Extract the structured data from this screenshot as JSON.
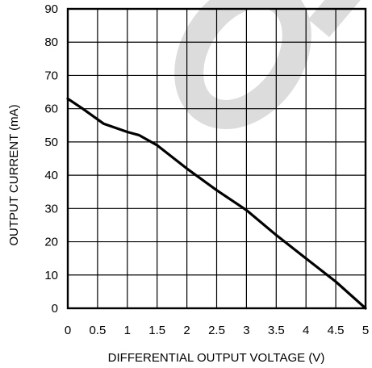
{
  "chart_data": {
    "type": "line",
    "title": "",
    "xlabel": "DIFFERENTIAL OUTPUT VOLTAGE (V)",
    "ylabel": "OUTPUT CURRENT (mA)",
    "xlim": [
      0,
      5
    ],
    "ylim": [
      0,
      90
    ],
    "x_ticks": [
      "0",
      "0.5",
      "1",
      "1.5",
      "2",
      "2.5",
      "3",
      "3.5",
      "4",
      "4.5",
      "5"
    ],
    "y_ticks": [
      "0",
      "10",
      "20",
      "30",
      "40",
      "50",
      "60",
      "70",
      "80",
      "90"
    ],
    "grid": true,
    "watermark_color": "#dcdcdc",
    "series": [
      {
        "x": [
          0,
          0.25,
          0.6,
          1.0,
          1.2,
          1.5,
          2.0,
          2.5,
          3.0,
          3.5,
          4.0,
          4.5,
          5.0
        ],
        "y": [
          63,
          60,
          55.5,
          53,
          52,
          49,
          42,
          35.5,
          29.5,
          22,
          15,
          8,
          0
        ]
      }
    ]
  }
}
